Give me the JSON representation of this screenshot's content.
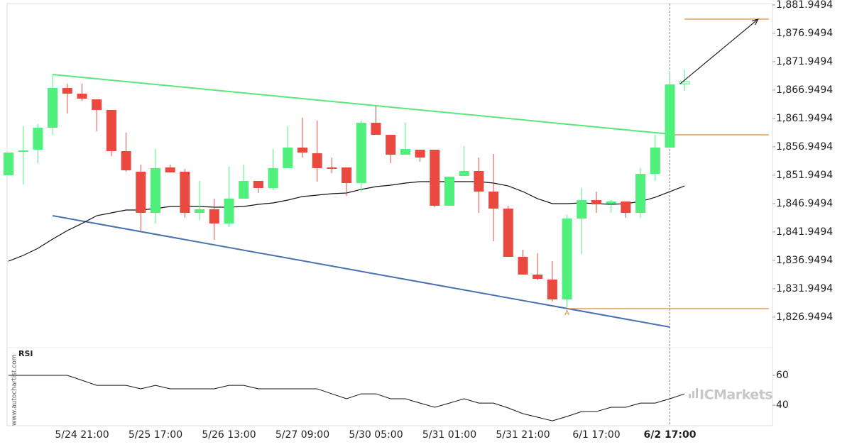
{
  "chart_data": [
    {
      "type": "candlestick",
      "ylim": [
        1821.57,
        1882.2
      ],
      "yticks": [
        {
          "value": 1881.9494,
          "label": "1,881.9494"
        },
        {
          "value": 1876.9494,
          "label": "1,876.9494"
        },
        {
          "value": 1871.9494,
          "label": "1,871.9494"
        },
        {
          "value": 1866.9494,
          "label": "1,866.9494"
        },
        {
          "value": 1861.9494,
          "label": "1,861.9494"
        },
        {
          "value": 1856.9494,
          "label": "1,856.9494"
        },
        {
          "value": 1851.9494,
          "label": "1,851.9494"
        },
        {
          "value": 1846.9494,
          "label": "1,846.9494"
        },
        {
          "value": 1841.9494,
          "label": "1,841.9494"
        },
        {
          "value": 1836.9494,
          "label": "1,836.9494"
        },
        {
          "value": 1831.9494,
          "label": "1,831.9494"
        },
        {
          "value": 1826.9494,
          "label": "1,826.9494"
        }
      ],
      "categories": [
        null,
        null,
        null,
        null,
        null,
        "5/24 21:00",
        null,
        null,
        null,
        null,
        "5/25 17:00",
        null,
        null,
        null,
        null,
        "5/26 13:00",
        null,
        null,
        null,
        null,
        "5/27 09:00",
        null,
        null,
        null,
        null,
        "5/30 05:00",
        null,
        null,
        null,
        null,
        "5/31 01:00",
        null,
        null,
        null,
        null,
        "5/31 21:00",
        null,
        null,
        null,
        null,
        "6/1 17:00",
        null,
        null,
        null,
        null,
        "6/2 17:00",
        null
      ],
      "current_index": 45,
      "up_color": "#4ff17c",
      "down_color": "#e9493f",
      "open": [
        1851.95,
        1856.07,
        1856.45,
        1860.32,
        1867.32,
        1866.32,
        1865.32,
        1863.45,
        1856.2,
        1852.57,
        1845.32,
        1853.32,
        1852.57,
        1845.32,
        1845.95,
        1843.45,
        1847.82,
        1850.95,
        1849.7,
        1853.2,
        1856.82,
        1855.82,
        1853.32,
        1853.32,
        1850.57,
        1861.2,
        1859.07,
        1855.57,
        1856.45,
        1856.45,
        1846.57,
        1851.82,
        1852.7,
        1849.07,
        1846.07,
        1837.57,
        1834.45,
        1833.57,
        1830.07,
        1844.32,
        1847.57,
        1846.95,
        1847.32,
        1845.32,
        1852.2,
        1856.82,
        1868.07
      ],
      "high": [
        1855.95,
        1860.57,
        1860.95,
        1869.7,
        1868.07,
        1868.07,
        1865.32,
        1863.45,
        1859.45,
        1853.82,
        1856.57,
        1853.82,
        1853.07,
        1850.95,
        1847.82,
        1853.45,
        1853.82,
        1850.95,
        1856.57,
        1860.57,
        1862.07,
        1861.57,
        1855.07,
        1853.32,
        1861.57,
        1864.2,
        1859.07,
        1861.2,
        1856.45,
        1856.45,
        1851.7,
        1857.07,
        1855.07,
        1855.7,
        1846.57,
        1838.82,
        1838.2,
        1836.82,
        1844.95,
        1849.7,
        1849.07,
        1847.57,
        1847.32,
        1853.2,
        1859.07,
        1870.32,
        1870.57
      ],
      "low": [
        1851.95,
        1850.32,
        1854.07,
        1859.07,
        1862.82,
        1865.07,
        1859.7,
        1855.32,
        1852.57,
        1842.2,
        1843.45,
        1852.45,
        1844.45,
        1844.07,
        1840.57,
        1842.82,
        1847.82,
        1848.82,
        1849.32,
        1853.2,
        1855.07,
        1850.82,
        1852.32,
        1848.32,
        1849.07,
        1859.07,
        1854.07,
        1855.57,
        1854.32,
        1846.32,
        1846.57,
        1851.82,
        1845.32,
        1840.32,
        1837.57,
        1834.45,
        1833.45,
        1829.7,
        1828.7,
        1838.07,
        1845.32,
        1845.32,
        1844.45,
        1844.45,
        1850.95,
        1856.82,
        1866.82
      ],
      "close": [
        1855.95,
        1856.32,
        1860.32,
        1867.32,
        1866.32,
        1865.45,
        1863.45,
        1856.2,
        1852.82,
        1845.32,
        1853.2,
        1852.45,
        1845.32,
        1845.95,
        1843.45,
        1847.82,
        1850.95,
        1849.7,
        1853.2,
        1856.82,
        1855.95,
        1853.2,
        1853.07,
        1850.57,
        1861.2,
        1859.07,
        1855.57,
        1856.57,
        1855.07,
        1846.57,
        1851.7,
        1852.7,
        1849.07,
        1846.07,
        1837.57,
        1834.45,
        1833.7,
        1830.07,
        1844.32,
        1847.57,
        1846.82,
        1847.32,
        1845.32,
        1852.2,
        1856.82,
        1867.95,
        1868.45
      ],
      "moving_average": {
        "color": "#111111",
        "values": [
          1836.82,
          1837.82,
          1839.07,
          1840.7,
          1842.2,
          1843.45,
          1844.82,
          1845.32,
          1845.82,
          1845.82,
          1846.07,
          1846.45,
          1846.45,
          1846.45,
          1846.32,
          1846.32,
          1846.45,
          1846.82,
          1847.07,
          1847.57,
          1848.2,
          1848.45,
          1848.7,
          1848.82,
          1849.45,
          1849.95,
          1850.2,
          1850.57,
          1850.82,
          1850.82,
          1850.82,
          1850.82,
          1850.82,
          1850.57,
          1850.07,
          1849.07,
          1847.82,
          1846.95,
          1846.95,
          1847.07,
          1846.95,
          1846.82,
          1846.95,
          1847.32,
          1848.07,
          1849.07,
          1850.07
        ]
      },
      "trendlines": [
        {
          "color": "#5de67c",
          "x": [
            3,
            45
          ],
          "y": [
            1869.7,
            1859.2
          ]
        },
        {
          "color": "#4a72b0",
          "x": [
            3,
            45
          ],
          "y": [
            1844.82,
            1825.2
          ]
        }
      ],
      "levels": [
        {
          "color": "#d98a3c",
          "start": 45,
          "value": 1859.07
        },
        {
          "color": "#d98a3c",
          "start": 38,
          "value": 1828.45
        },
        {
          "color": "#d98a3c",
          "start": 46,
          "value": 1879.45
        }
      ],
      "arrow": {
        "color": "#222222",
        "x": [
          45.7,
          51.0
        ],
        "y": [
          1868.07,
          1879.45
        ]
      },
      "point_label": {
        "text": "A",
        "index": 38,
        "color": "#d98a3c"
      }
    },
    {
      "type": "line",
      "title": "RSI",
      "ylim": [
        26.2,
        78.6
      ],
      "yticks": [
        40,
        60
      ],
      "color": "#111111",
      "values": [
        60,
        60,
        60,
        60,
        60,
        56.7,
        53.3,
        53.3,
        53.3,
        51.0,
        53.3,
        51.0,
        51.0,
        51.0,
        51.0,
        53.3,
        53.3,
        51.0,
        51.0,
        51.0,
        51.0,
        51.0,
        47.6,
        44.3,
        47.6,
        47.6,
        44.3,
        44.3,
        41.4,
        38.6,
        41.4,
        44.3,
        41.4,
        41.4,
        38.1,
        34.3,
        31.9,
        29.5,
        32.4,
        35.7,
        35.7,
        38.6,
        38.6,
        41.4,
        41.4,
        44.3,
        47.6
      ]
    }
  ],
  "watermark": "www.autochartist.com",
  "brand": "ICMarkets"
}
